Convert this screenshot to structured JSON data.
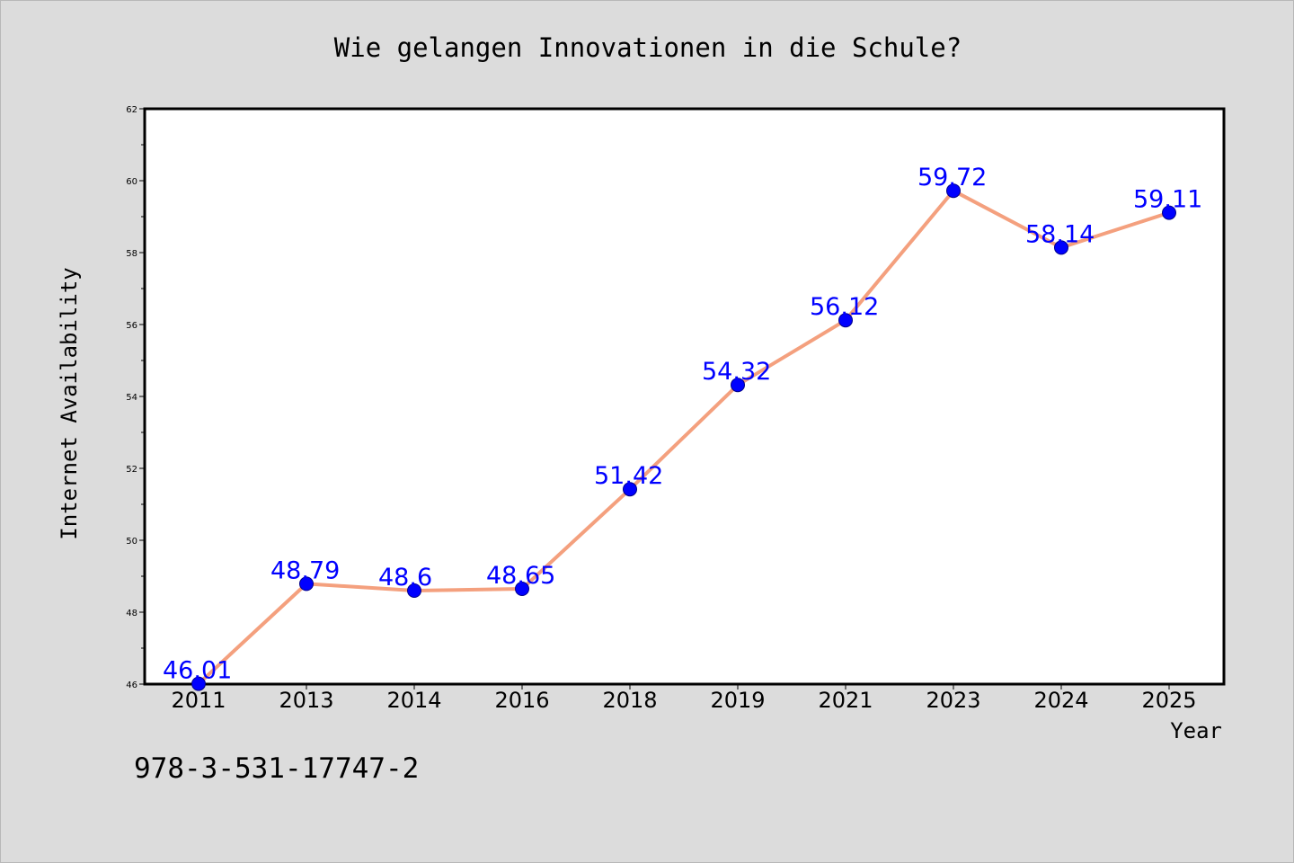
{
  "chart_data": {
    "type": "line",
    "title": "Wie gelangen Innovationen in die Schule?",
    "xlabel": "Year",
    "ylabel": "Internet Availability",
    "categories": [
      "2011",
      "2013",
      "2014",
      "2016",
      "2018",
      "2019",
      "2021",
      "2023",
      "2024",
      "2025"
    ],
    "values": [
      46.01,
      48.79,
      48.6,
      48.65,
      51.42,
      54.32,
      56.12,
      59.72,
      58.14,
      59.11
    ],
    "data_labels": [
      "46.01",
      "48.79",
      "48.6",
      "48.65",
      "51.42",
      "54.32",
      "56.12",
      "59.72",
      "58.14",
      "59.11"
    ],
    "ylim": [
      46,
      62
    ],
    "yticks": [
      46,
      48,
      50,
      52,
      54,
      56,
      58,
      60,
      62
    ],
    "ytick_labels": [
      "46",
      "48",
      "50",
      "52",
      "54",
      "56",
      "58",
      "60",
      "62"
    ],
    "grid": false,
    "legend": "none",
    "colors": {
      "line": "#f4a07e",
      "marker_fill": "#0000ff",
      "marker_edge": "#00008b",
      "data_label": "#0000ff",
      "background": "#dcdcdc",
      "plot_background": "#ffffff"
    }
  },
  "footnote": "978-3-531-17747-2"
}
